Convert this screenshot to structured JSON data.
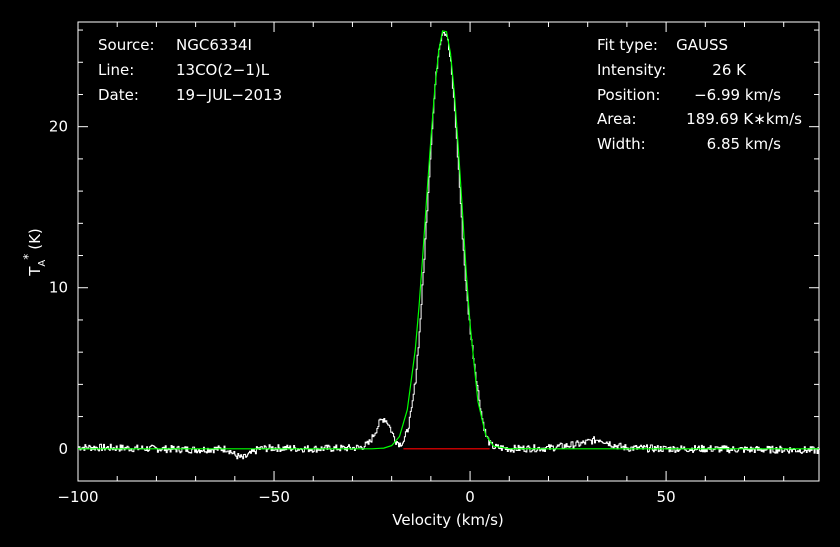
{
  "chart_data": {
    "type": "line",
    "title": "",
    "xlabel": "Velocity (km/s)",
    "ylabel": "T",
    "ylabel_sub": "A",
    "ylabel_sup": "*",
    "ylabel_unit": "(K)",
    "xlim": [
      -100,
      89
    ],
    "ylim": [
      -2,
      26.5
    ],
    "x_ticks": [
      -100,
      -50,
      0,
      50
    ],
    "x_tick_labels": [
      "−100",
      "−50",
      "0",
      "50"
    ],
    "y_ticks": [
      0,
      10,
      20
    ],
    "y_tick_labels": [
      "0",
      "10",
      "20"
    ],
    "grid": false,
    "colors": {
      "background": "#000000",
      "axes": "#ffffff",
      "spectrum": "#ffffff",
      "fit": "#00ff00",
      "baseline": "#ff0000"
    },
    "fit_params": {
      "amplitude": 26,
      "center": -6.99,
      "fwhm": 6.85
    },
    "baseline_segment": [
      -17,
      5
    ],
    "series": [
      {
        "style": "step",
        "x": [
          -100,
          -90,
          -80,
          -70,
          -62,
          -60,
          -58,
          -56,
          -54,
          -50,
          -40,
          -30,
          -28,
          -26,
          -25,
          -24,
          -23,
          -22,
          -21,
          -20,
          -19,
          -18,
          -17,
          -16,
          -15,
          -14,
          -13,
          -12,
          -11,
          -10,
          -9,
          -8,
          -7,
          -6,
          -5,
          -4,
          -3,
          -2,
          -1,
          0,
          1,
          2,
          3,
          4,
          5,
          6,
          10,
          20,
          28,
          31,
          33,
          35,
          37,
          40,
          50,
          60,
          70,
          80,
          89
        ],
        "y": [
          0.1,
          0.05,
          0.0,
          -0.05,
          0.0,
          -0.4,
          -0.6,
          -0.3,
          0.0,
          0.05,
          0.0,
          0.05,
          0.1,
          0.3,
          0.7,
          1.2,
          1.7,
          1.9,
          1.6,
          1.0,
          0.5,
          0.3,
          0.5,
          1.2,
          2.4,
          4.3,
          7.2,
          10.9,
          15.0,
          19.1,
          22.6,
          25.0,
          26.0,
          25.7,
          23.9,
          21.0,
          17.3,
          13.2,
          9.7,
          7.3,
          5.3,
          3.5,
          1.9,
          0.8,
          0.3,
          0.1,
          0.0,
          0.05,
          0.3,
          0.5,
          0.6,
          0.4,
          0.2,
          0.05,
          0.0,
          0.0,
          -0.05,
          -0.05,
          -0.1
        ]
      },
      {
        "style": "line",
        "x": [
          -100,
          -30,
          -25,
          -22,
          -20,
          -18,
          -16,
          -14,
          -13,
          -12,
          -11,
          -10,
          -9,
          -8,
          -7,
          -6,
          -5,
          -4,
          -3,
          -2,
          -1,
          0,
          2,
          4,
          6,
          10,
          20,
          89
        ],
        "y": [
          0,
          0,
          0.0,
          0.04,
          0.2,
          0.76,
          2.43,
          6.1,
          8.89,
          12.2,
          15.78,
          19.24,
          22.34,
          24.7,
          25.95,
          25.9,
          24.55,
          22.08,
          18.7,
          14.98,
          11.07,
          7.72,
          2.95,
          0.86,
          0.16,
          0.01,
          0,
          0
        ]
      }
    ]
  },
  "annotations": {
    "left": [
      {
        "key": "Source:",
        "value": "NGC6334I"
      },
      {
        "key": "Line:",
        "value": "13CO(2−1)L"
      },
      {
        "key": "Date:",
        "value": "19−JUL−2013"
      }
    ],
    "right": [
      {
        "key": "Fit type:",
        "value": "GAUSS"
      },
      {
        "key": "Intensity:",
        "value": "26 K"
      },
      {
        "key": "Position:",
        "value": "−6.99 km/s"
      },
      {
        "key": "Area:",
        "value": "189.69 K∗km/s"
      },
      {
        "key": "Width:",
        "value": "6.85 km/s"
      }
    ]
  }
}
